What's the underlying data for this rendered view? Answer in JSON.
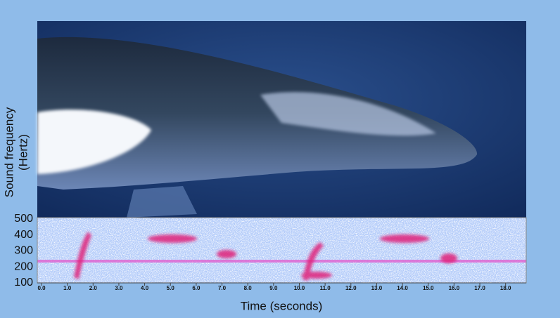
{
  "chart_data": {
    "type": "spectrogram",
    "y_label_lines": [
      "Sound frequency",
      "(Hertz)"
    ],
    "x_label": "Time (seconds)",
    "ylim": [
      100,
      500
    ],
    "yticks": [
      100,
      200,
      300,
      400,
      500
    ],
    "xlim": [
      0,
      18.8
    ],
    "xticks": [
      {
        "value": 0,
        "label": "0.0"
      },
      {
        "value": 1,
        "label": "1.0"
      },
      {
        "value": 2,
        "label": "2.0"
      },
      {
        "value": 3,
        "label": "3.0"
      },
      {
        "value": 4,
        "label": "4.0"
      },
      {
        "value": 5,
        "label": "5.0"
      },
      {
        "value": 6,
        "label": "6.0"
      },
      {
        "value": 7,
        "label": "7.0"
      },
      {
        "value": 8,
        "label": "8.0"
      },
      {
        "value": 9,
        "label": "9.0"
      },
      {
        "value": 10,
        "label": "10.0"
      },
      {
        "value": 11,
        "label": "11.0"
      },
      {
        "value": 12,
        "label": "12.0"
      },
      {
        "value": 13,
        "label": "13.0"
      },
      {
        "value": 14,
        "label": "14.0"
      },
      {
        "value": 15,
        "label": "15.0"
      },
      {
        "value": 16,
        "label": "16.0"
      },
      {
        "value": 17,
        "label": "17.0"
      },
      {
        "value": 18,
        "label": "18.0"
      }
    ]
  }
}
